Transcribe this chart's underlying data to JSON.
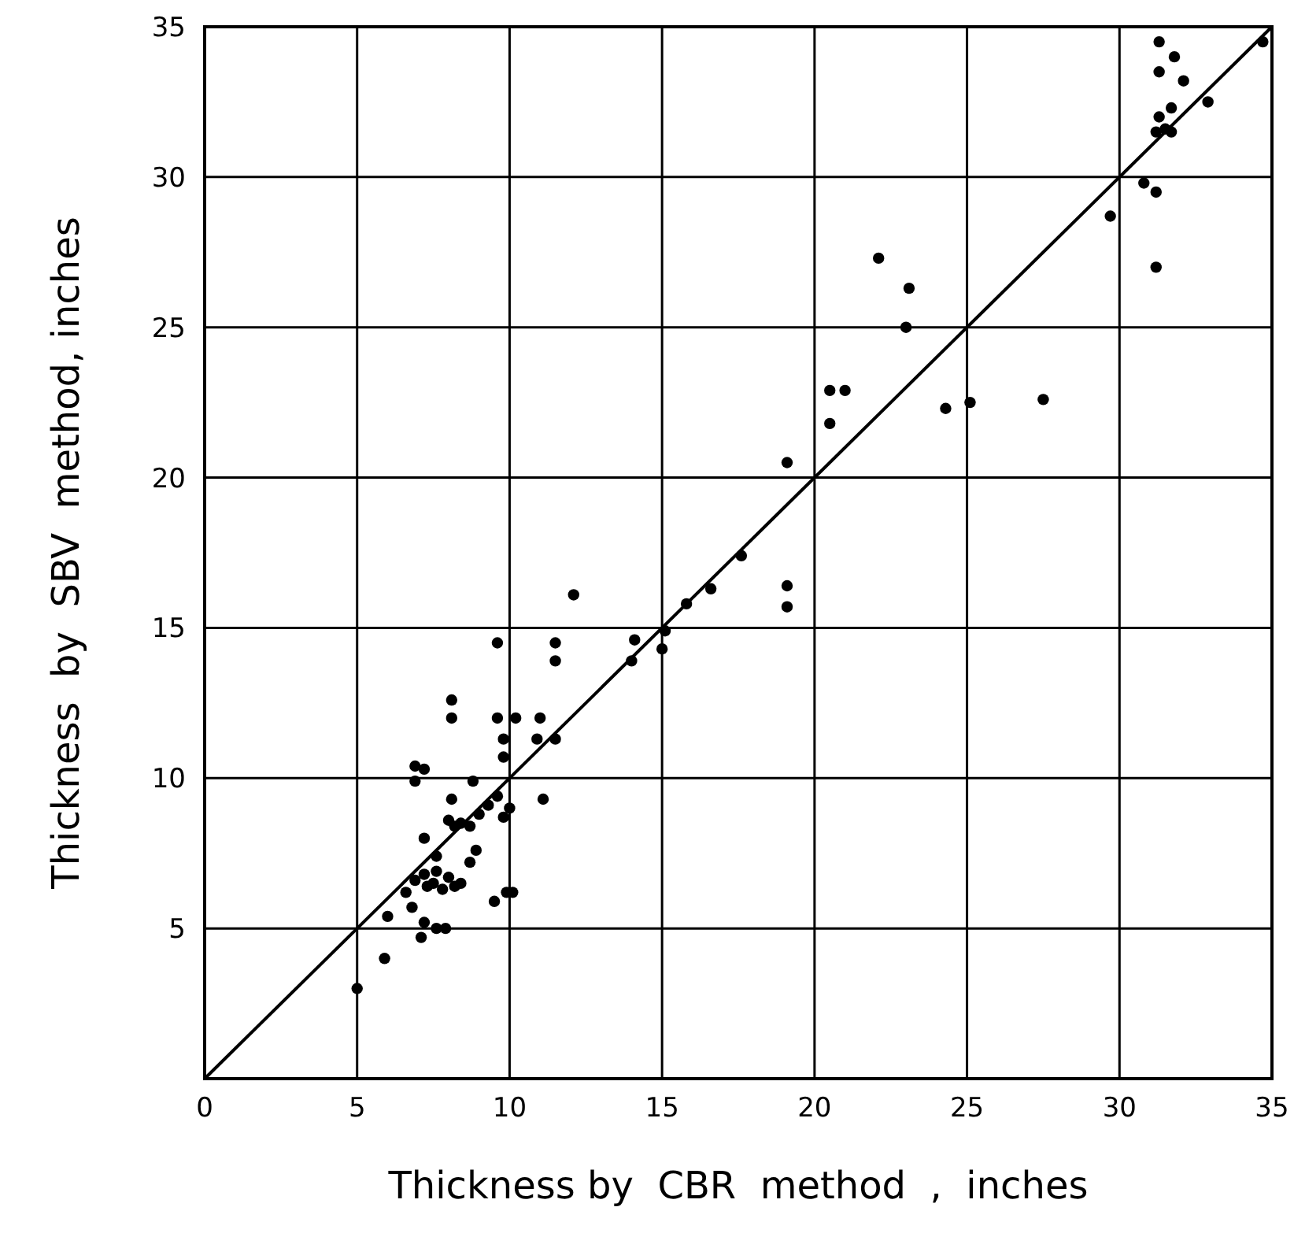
{
  "chart_data": {
    "type": "scatter",
    "xlabel": "Thickness by  CBR  method  ,  inches",
    "ylabel": "Thickness  by  SBV  method, inches",
    "xlim": [
      0,
      35
    ],
    "ylim": [
      0,
      35
    ],
    "xticks": [
      0,
      5,
      10,
      15,
      20,
      25,
      30,
      35
    ],
    "yticks": [
      5,
      10,
      15,
      20,
      25,
      30,
      35
    ],
    "grid": true,
    "marker": "circle",
    "series": [
      {
        "color": "#000000",
        "x": [
          5.0,
          5.9,
          6.0,
          6.6,
          6.8,
          6.9,
          7.1,
          7.2,
          7.3,
          7.6,
          7.9,
          7.2,
          7.5,
          7.6,
          7.8,
          8.0,
          8.2,
          8.4,
          7.2,
          7.6,
          8.2,
          8.0,
          8.4,
          8.7,
          8.8,
          8.1,
          8.7,
          8.9,
          9.0,
          9.3,
          9.6,
          9.8,
          10.0,
          9.9,
          10.1,
          9.5,
          6.9,
          6.9,
          7.2,
          8.1,
          8.1,
          9.6,
          10.2,
          9.8,
          9.8,
          11.0,
          10.9,
          11.1,
          11.5,
          9.6,
          11.5,
          11.5,
          12.1,
          14.0,
          14.1,
          15.0,
          15.1,
          15.8,
          16.6,
          17.6,
          19.1,
          19.1,
          19.1,
          20.5,
          20.5,
          21.0,
          22.1,
          23.1,
          23.0,
          24.3,
          25.1,
          27.5,
          29.7,
          30.8,
          31.2,
          31.2,
          31.2,
          31.3,
          31.3,
          31.3,
          31.5,
          31.7,
          31.8,
          32.1,
          31.7,
          32.9,
          34.7
        ],
        "values": [
          3.0,
          4.0,
          5.4,
          6.2,
          5.7,
          6.6,
          4.7,
          5.2,
          6.4,
          5.0,
          5.0,
          6.8,
          6.5,
          6.9,
          6.3,
          6.7,
          6.4,
          6.5,
          8.0,
          7.4,
          8.4,
          8.6,
          8.5,
          8.4,
          9.9,
          9.3,
          7.2,
          7.6,
          8.8,
          9.1,
          9.4,
          8.7,
          9.0,
          6.2,
          6.2,
          5.9,
          10.4,
          9.9,
          10.3,
          12.0,
          12.6,
          12.0,
          12.0,
          11.3,
          10.7,
          12.0,
          11.3,
          9.3,
          11.3,
          14.5,
          14.5,
          13.9,
          16.1,
          13.9,
          14.6,
          14.3,
          14.9,
          15.8,
          16.3,
          17.4,
          15.7,
          16.4,
          20.5,
          21.8,
          22.9,
          22.9,
          27.3,
          26.3,
          25.0,
          22.3,
          22.5,
          22.6,
          28.7,
          29.8,
          29.5,
          27.0,
          31.5,
          33.5,
          34.5,
          32.0,
          31.6,
          32.3,
          34.0,
          33.2,
          31.5,
          32.5,
          34.5
        ]
      },
      {
        "type": "line",
        "color": "#000000",
        "x": [
          0,
          35
        ],
        "values": [
          0,
          35
        ],
        "marker": "none"
      }
    ]
  }
}
